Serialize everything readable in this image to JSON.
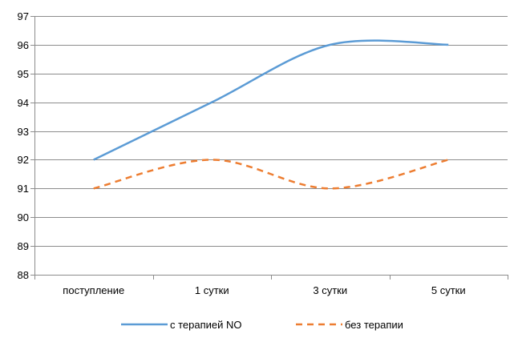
{
  "chart_data": {
    "type": "line",
    "categories": [
      "поступление",
      "1 сутки",
      "3 сутки",
      "5 сутки"
    ],
    "ylim": [
      88,
      97
    ],
    "yticks": [
      88,
      89,
      90,
      91,
      92,
      93,
      94,
      95,
      96,
      97
    ],
    "grid": true,
    "legend_position": "bottom",
    "series": [
      {
        "name": "с терапией NO",
        "values": [
          92,
          94,
          96,
          96
        ],
        "color": "#5b9bd5",
        "style": "solid",
        "smooth": true
      },
      {
        "name": "без терапии",
        "values": [
          91,
          92,
          91,
          92
        ],
        "color": "#ed7d31",
        "style": "dashed",
        "smooth": true
      }
    ]
  }
}
